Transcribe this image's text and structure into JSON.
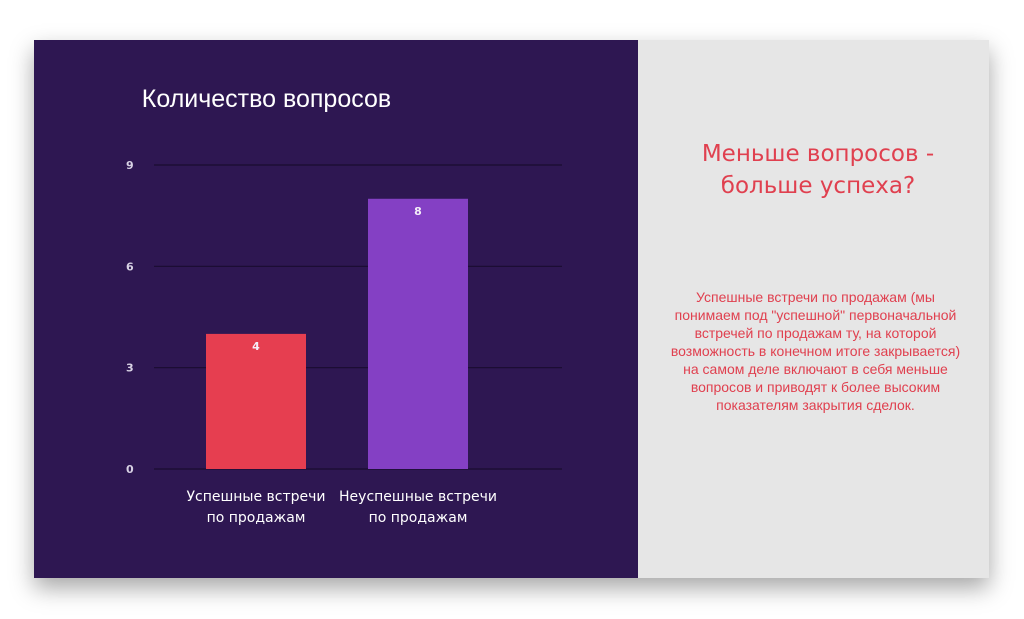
{
  "chart_data": {
    "type": "bar",
    "title": "Количество вопросов",
    "categories": [
      "Успешные встречи\nпо продажам",
      "Неуспешные встречи\nпо продажам"
    ],
    "values": [
      4,
      8
    ],
    "bar_colors": [
      "#e63e50",
      "#8440c4"
    ],
    "ylim": [
      0,
      9
    ],
    "yticks": [
      0,
      3,
      6,
      9
    ],
    "grid": true,
    "data_labels": true
  },
  "colors": {
    "left_background": "#2e1752",
    "right_background": "#e6e6e6",
    "accent_text": "#e0404f",
    "gridline": "#1a0c30"
  },
  "right_panel": {
    "headline": "Меньше вопросов -\nбольше успеха?",
    "body": "Успешные встречи по продажам (мы\nпонимаем  под \"успешной\" первоначальной\nвстречей  по продажам ту, на которой\nвозможность в  конечном  итоге закрывается)\nна самом деле включают в себя меньше\nвопросов  и приводят к  более высоким\nпоказателям  закрытия сделок."
  }
}
